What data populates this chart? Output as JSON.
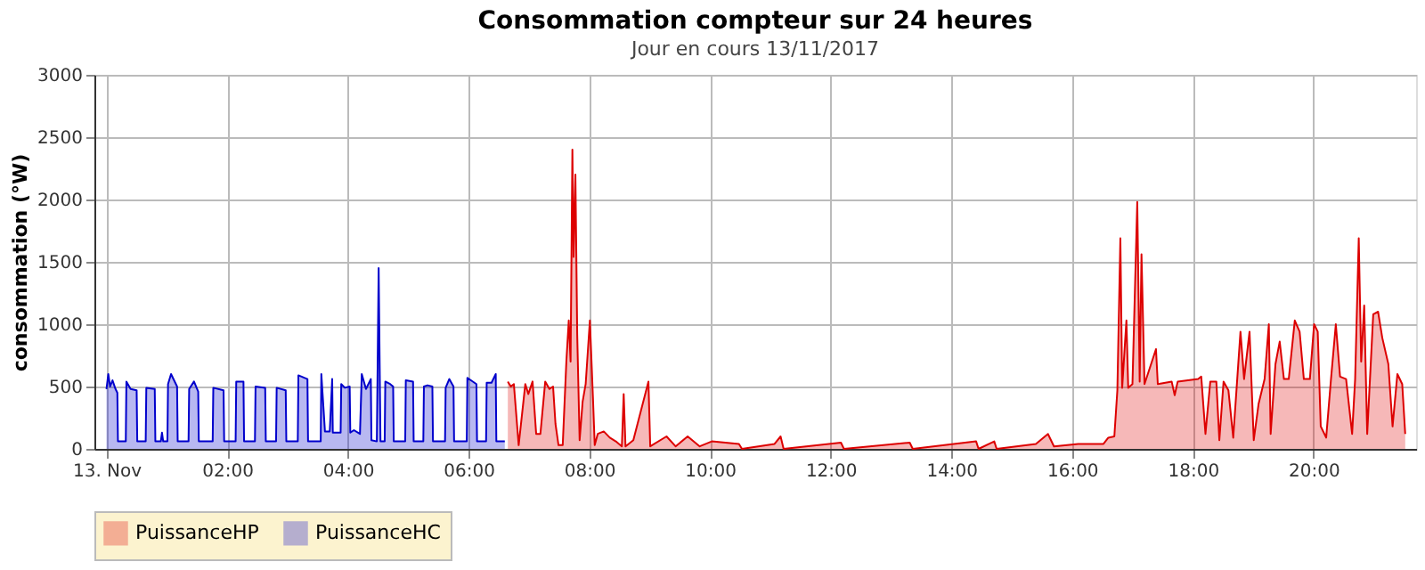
{
  "chart_data": {
    "type": "area",
    "title": "Consommation compteur sur 24 heures",
    "subtitle": "Jour en cours 13/11/2017",
    "ylabel": "consommation (°W)",
    "xlim": [
      -0.2,
      21.7
    ],
    "ylim": [
      0,
      3000
    ],
    "xticks": [
      {
        "value": 0,
        "label": "13. Nov"
      },
      {
        "value": 2,
        "label": "02:00"
      },
      {
        "value": 4,
        "label": "04:00"
      },
      {
        "value": 6,
        "label": "06:00"
      },
      {
        "value": 8,
        "label": "08:00"
      },
      {
        "value": 10,
        "label": "10:00"
      },
      {
        "value": 12,
        "label": "12:00"
      },
      {
        "value": 14,
        "label": "14:00"
      },
      {
        "value": 16,
        "label": "16:00"
      },
      {
        "value": 18,
        "label": "18:00"
      },
      {
        "value": 20,
        "label": "20:00"
      }
    ],
    "yticks": [
      0,
      500,
      1000,
      1500,
      2000,
      2500,
      3000
    ],
    "grid": true,
    "legend": "bottom",
    "line_style": "solid",
    "series": [
      {
        "name": "PuissanceHP",
        "color": "#dd0000",
        "x": [
          6.65,
          6.7,
          6.75,
          6.83,
          6.94,
          6.99,
          7.06,
          7.12,
          7.19,
          7.27,
          7.34,
          7.4,
          7.44,
          7.49,
          7.56,
          7.62,
          7.66,
          7.69,
          7.72,
          7.74,
          7.77,
          7.8,
          7.84,
          7.89,
          7.94,
          8.01,
          8.06,
          8.09,
          8.14,
          8.24,
          8.34,
          8.44,
          8.54,
          8.57,
          8.6,
          8.73,
          8.98,
          9.01,
          9.28,
          9.43,
          9.63,
          9.83,
          10.03,
          10.48,
          10.53,
          11.07,
          11.17,
          11.22,
          12.17,
          12.22,
          13.31,
          13.36,
          14.41,
          14.45,
          14.71,
          14.75,
          15.4,
          15.6,
          15.7,
          16.1,
          16.3,
          16.52,
          16.6,
          16.7,
          16.75,
          16.8,
          16.83,
          16.9,
          16.93,
          17.0,
          17.08,
          17.12,
          17.15,
          17.2,
          17.39,
          17.42,
          17.65,
          17.7,
          17.75,
          18.09,
          18.14,
          18.21,
          18.29,
          18.39,
          18.44,
          18.51,
          18.59,
          18.67,
          18.79,
          18.85,
          18.94,
          19.01,
          19.09,
          19.19,
          19.26,
          19.29,
          19.37,
          19.44,
          19.51,
          19.59,
          19.69,
          19.77,
          19.84,
          19.94,
          20.01,
          20.07,
          20.12,
          20.21,
          20.29,
          20.37,
          20.44,
          20.54,
          20.64,
          20.69,
          20.75,
          20.79,
          20.84,
          20.89,
          20.99,
          21.07,
          21.14,
          21.24,
          21.31,
          21.39,
          21.47,
          21.52
        ],
        "values": [
          540,
          500,
          520,
          30,
          520,
          440,
          540,
          120,
          120,
          540,
          480,
          500,
          200,
          30,
          30,
          700,
          1030,
          700,
          2400,
          1540,
          2200,
          920,
          70,
          380,
          520,
          1030,
          420,
          30,
          120,
          140,
          90,
          60,
          20,
          440,
          20,
          70,
          540,
          20,
          100,
          20,
          100,
          20,
          60,
          40,
          0,
          40,
          100,
          0,
          50,
          0,
          50,
          0,
          60,
          0,
          60,
          0,
          40,
          120,
          20,
          40,
          40,
          40,
          90,
          100,
          470,
          1690,
          490,
          1030,
          490,
          520,
          1980,
          540,
          1560,
          520,
          800,
          520,
          540,
          430,
          540,
          560,
          580,
          120,
          540,
          540,
          70,
          540,
          470,
          90,
          940,
          560,
          940,
          70,
          360,
          560,
          1000,
          120,
          680,
          860,
          560,
          560,
          1030,
          940,
          560,
          560,
          1000,
          940,
          180,
          90,
          560,
          1000,
          580,
          560,
          120,
          560,
          1690,
          700,
          1150,
          120,
          1080,
          1100,
          890,
          680,
          180,
          600,
          520,
          120
        ]
      },
      {
        "name": "PuissanceHC",
        "color": "#0000cc",
        "x": [
          0,
          0.03,
          0.06,
          0.1,
          0.15,
          0.18,
          0.19,
          0.32,
          0.33,
          0.4,
          0.5,
          0.51,
          0.65,
          0.66,
          0.8,
          0.81,
          0.9,
          0.92,
          0.94,
          1.01,
          1.02,
          1.07,
          1.17,
          1.18,
          1.36,
          1.37,
          1.45,
          1.52,
          1.53,
          1.76,
          1.77,
          1.94,
          1.95,
          2.14,
          2.15,
          2.27,
          2.28,
          2.46,
          2.47,
          2.63,
          2.64,
          2.81,
          2.82,
          2.97,
          2.98,
          3.17,
          3.18,
          3.33,
          3.34,
          3.55,
          3.56,
          3.62,
          3.7,
          3.74,
          3.75,
          3.88,
          3.89,
          3.95,
          4.03,
          4.04,
          4.1,
          4.2,
          4.23,
          4.3,
          4.38,
          4.39,
          4.48,
          4.51,
          4.54,
          4.61,
          4.62,
          4.7,
          4.75,
          4.76,
          4.95,
          4.96,
          5.08,
          5.09,
          5.25,
          5.26,
          5.32,
          5.4,
          5.41,
          5.61,
          5.62,
          5.68,
          5.75,
          5.76,
          5.97,
          5.98,
          6.13,
          6.14,
          6.29,
          6.3,
          6.38,
          6.45,
          6.46,
          6.6
        ],
        "values": [
          480,
          600,
          500,
          550,
          480,
          450,
          60,
          60,
          540,
          480,
          470,
          60,
          60,
          490,
          480,
          60,
          60,
          130,
          60,
          60,
          520,
          600,
          500,
          60,
          60,
          480,
          540,
          460,
          60,
          60,
          490,
          470,
          60,
          60,
          540,
          540,
          60,
          60,
          500,
          490,
          60,
          60,
          490,
          470,
          60,
          60,
          590,
          560,
          60,
          60,
          600,
          140,
          140,
          560,
          130,
          130,
          520,
          490,
          500,
          130,
          150,
          120,
          600,
          480,
          560,
          70,
          60,
          1450,
          60,
          60,
          540,
          520,
          500,
          60,
          60,
          550,
          540,
          60,
          60,
          500,
          510,
          500,
          60,
          60,
          490,
          560,
          500,
          60,
          60,
          570,
          520,
          60,
          60,
          530,
          530,
          600,
          60,
          60
        ]
      }
    ]
  }
}
